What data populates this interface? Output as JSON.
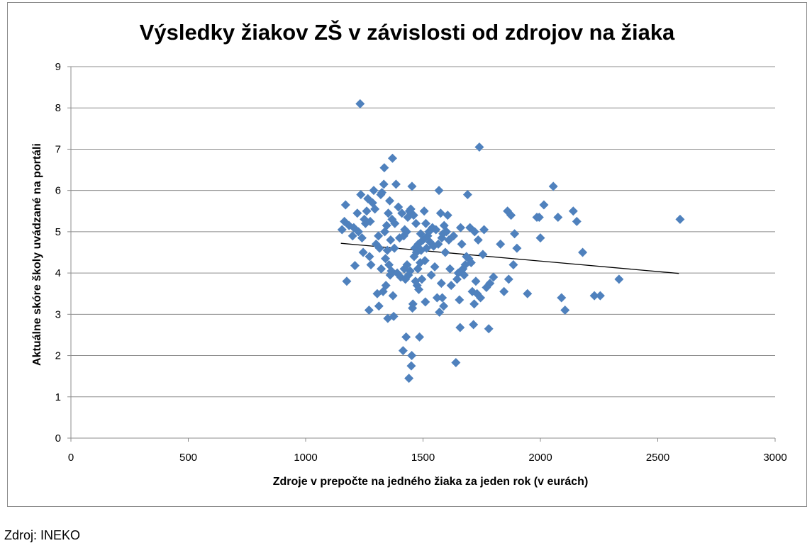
{
  "source_note": "Zdroj: INEKO",
  "chart_data": {
    "type": "scatter",
    "title": "Výsledky žiakov ZŠ v závislosti od zdrojov na žiaka",
    "xlabel": "Zdroje v prepočte na jedného žiaka za jeden rok (v eurách)",
    "ylabel": "Aktuálne skóre školy uvádzané na portáli",
    "xlim": [
      0,
      3000
    ],
    "ylim": [
      0,
      9
    ],
    "xticks": [
      0,
      500,
      1000,
      1500,
      2000,
      2500,
      3000
    ],
    "yticks": [
      0,
      1,
      2,
      3,
      4,
      5,
      6,
      7,
      8,
      9
    ],
    "grid": "horizontal",
    "marker_color": "#4F81BD",
    "trendline": {
      "type": "linear",
      "color": "#000000",
      "points": [
        [
          1150,
          4.72
        ],
        [
          2590,
          3.99
        ]
      ]
    },
    "points": [
      [
        1155,
        5.05
      ],
      [
        1165,
        5.25
      ],
      [
        1170,
        5.65
      ],
      [
        1175,
        3.8
      ],
      [
        1185,
        5.15
      ],
      [
        1200,
        4.9
      ],
      [
        1205,
        5.1
      ],
      [
        1210,
        4.18
      ],
      [
        1220,
        5.45
      ],
      [
        1225,
        5.0
      ],
      [
        1232,
        8.1
      ],
      [
        1235,
        5.9
      ],
      [
        1240,
        4.85
      ],
      [
        1245,
        4.5
      ],
      [
        1250,
        5.3
      ],
      [
        1255,
        5.2
      ],
      [
        1260,
        5.5
      ],
      [
        1265,
        5.8
      ],
      [
        1270,
        3.1
      ],
      [
        1272,
        4.4
      ],
      [
        1275,
        5.25
      ],
      [
        1278,
        4.2
      ],
      [
        1285,
        5.7
      ],
      [
        1290,
        6.0
      ],
      [
        1295,
        5.55
      ],
      [
        1300,
        4.7
      ],
      [
        1305,
        3.5
      ],
      [
        1310,
        4.9
      ],
      [
        1312,
        3.2
      ],
      [
        1315,
        4.6
      ],
      [
        1320,
        5.9
      ],
      [
        1322,
        4.1
      ],
      [
        1325,
        5.95
      ],
      [
        1330,
        3.55
      ],
      [
        1333,
        6.15
      ],
      [
        1335,
        6.55
      ],
      [
        1337,
        5.0
      ],
      [
        1340,
        4.35
      ],
      [
        1342,
        3.7
      ],
      [
        1345,
        5.15
      ],
      [
        1348,
        4.55
      ],
      [
        1350,
        2.9
      ],
      [
        1352,
        5.45
      ],
      [
        1355,
        4.2
      ],
      [
        1358,
        5.75
      ],
      [
        1360,
        3.95
      ],
      [
        1362,
        4.8
      ],
      [
        1365,
        4.05
      ],
      [
        1368,
        5.3
      ],
      [
        1370,
        6.78
      ],
      [
        1372,
        3.45
      ],
      [
        1375,
        2.95
      ],
      [
        1378,
        4.6
      ],
      [
        1380,
        5.2
      ],
      [
        1385,
        6.15
      ],
      [
        1390,
        4.0
      ],
      [
        1395,
        5.6
      ],
      [
        1400,
        4.85
      ],
      [
        1405,
        3.9
      ],
      [
        1410,
        5.45
      ],
      [
        1415,
        2.12
      ],
      [
        1418,
        4.9
      ],
      [
        1420,
        4.1
      ],
      [
        1422,
        5.05
      ],
      [
        1425,
        3.85
      ],
      [
        1428,
        2.45
      ],
      [
        1430,
        5.0
      ],
      [
        1432,
        4.2
      ],
      [
        1435,
        5.35
      ],
      [
        1438,
        3.95
      ],
      [
        1440,
        1.45
      ],
      [
        1442,
        5.5
      ],
      [
        1445,
        4.05
      ],
      [
        1448,
        5.55
      ],
      [
        1450,
        1.75
      ],
      [
        1452,
        2.0
      ],
      [
        1453,
        6.1
      ],
      [
        1455,
        3.15
      ],
      [
        1457,
        3.25
      ],
      [
        1460,
        5.4
      ],
      [
        1462,
        4.4
      ],
      [
        1465,
        4.6
      ],
      [
        1468,
        3.8
      ],
      [
        1470,
        5.2
      ],
      [
        1472,
        4.5
      ],
      [
        1475,
        3.7
      ],
      [
        1478,
        4.1
      ],
      [
        1480,
        4.7
      ],
      [
        1482,
        3.6
      ],
      [
        1485,
        2.45
      ],
      [
        1488,
        4.25
      ],
      [
        1490,
        4.95
      ],
      [
        1492,
        4.55
      ],
      [
        1495,
        3.85
      ],
      [
        1500,
        4.8
      ],
      [
        1505,
        5.5
      ],
      [
        1508,
        4.3
      ],
      [
        1510,
        3.3
      ],
      [
        1512,
        5.2
      ],
      [
        1515,
        4.6
      ],
      [
        1520,
        4.9
      ],
      [
        1525,
        5.0
      ],
      [
        1530,
        4.75
      ],
      [
        1535,
        3.95
      ],
      [
        1540,
        5.1
      ],
      [
        1545,
        4.65
      ],
      [
        1550,
        4.15
      ],
      [
        1555,
        5.05
      ],
      [
        1560,
        3.4
      ],
      [
        1565,
        4.7
      ],
      [
        1568,
        6.0
      ],
      [
        1570,
        3.05
      ],
      [
        1575,
        5.45
      ],
      [
        1578,
        3.75
      ],
      [
        1580,
        4.85
      ],
      [
        1582,
        3.4
      ],
      [
        1585,
        4.95
      ],
      [
        1588,
        3.2
      ],
      [
        1590,
        5.15
      ],
      [
        1595,
        4.5
      ],
      [
        1600,
        5.0
      ],
      [
        1605,
        5.4
      ],
      [
        1610,
        4.8
      ],
      [
        1615,
        4.1
      ],
      [
        1620,
        3.7
      ],
      [
        1630,
        4.9
      ],
      [
        1640,
        1.83
      ],
      [
        1645,
        3.85
      ],
      [
        1650,
        4.0
      ],
      [
        1655,
        3.35
      ],
      [
        1658,
        2.68
      ],
      [
        1660,
        5.1
      ],
      [
        1665,
        4.7
      ],
      [
        1670,
        4.1
      ],
      [
        1675,
        3.95
      ],
      [
        1680,
        4.2
      ],
      [
        1685,
        4.4
      ],
      [
        1690,
        5.9
      ],
      [
        1695,
        4.35
      ],
      [
        1700,
        5.1
      ],
      [
        1705,
        4.25
      ],
      [
        1710,
        3.55
      ],
      [
        1715,
        2.75
      ],
      [
        1718,
        3.25
      ],
      [
        1720,
        5.0
      ],
      [
        1725,
        3.8
      ],
      [
        1730,
        3.5
      ],
      [
        1735,
        4.8
      ],
      [
        1740,
        7.05
      ],
      [
        1745,
        3.4
      ],
      [
        1755,
        4.45
      ],
      [
        1760,
        5.05
      ],
      [
        1770,
        3.65
      ],
      [
        1780,
        2.65
      ],
      [
        1785,
        3.75
      ],
      [
        1800,
        3.9
      ],
      [
        1830,
        4.7
      ],
      [
        1845,
        3.55
      ],
      [
        1860,
        5.5
      ],
      [
        1865,
        3.85
      ],
      [
        1875,
        5.4
      ],
      [
        1885,
        4.2
      ],
      [
        1890,
        4.95
      ],
      [
        1900,
        4.6
      ],
      [
        1945,
        3.5
      ],
      [
        1985,
        5.35
      ],
      [
        1995,
        5.35
      ],
      [
        2000,
        4.85
      ],
      [
        2015,
        5.65
      ],
      [
        2055,
        6.1
      ],
      [
        2075,
        5.35
      ],
      [
        2090,
        3.4
      ],
      [
        2105,
        3.1
      ],
      [
        2140,
        5.5
      ],
      [
        2155,
        5.25
      ],
      [
        2180,
        4.5
      ],
      [
        2230,
        3.45
      ],
      [
        2255,
        3.45
      ],
      [
        2335,
        3.85
      ],
      [
        2595,
        5.3
      ]
    ]
  }
}
